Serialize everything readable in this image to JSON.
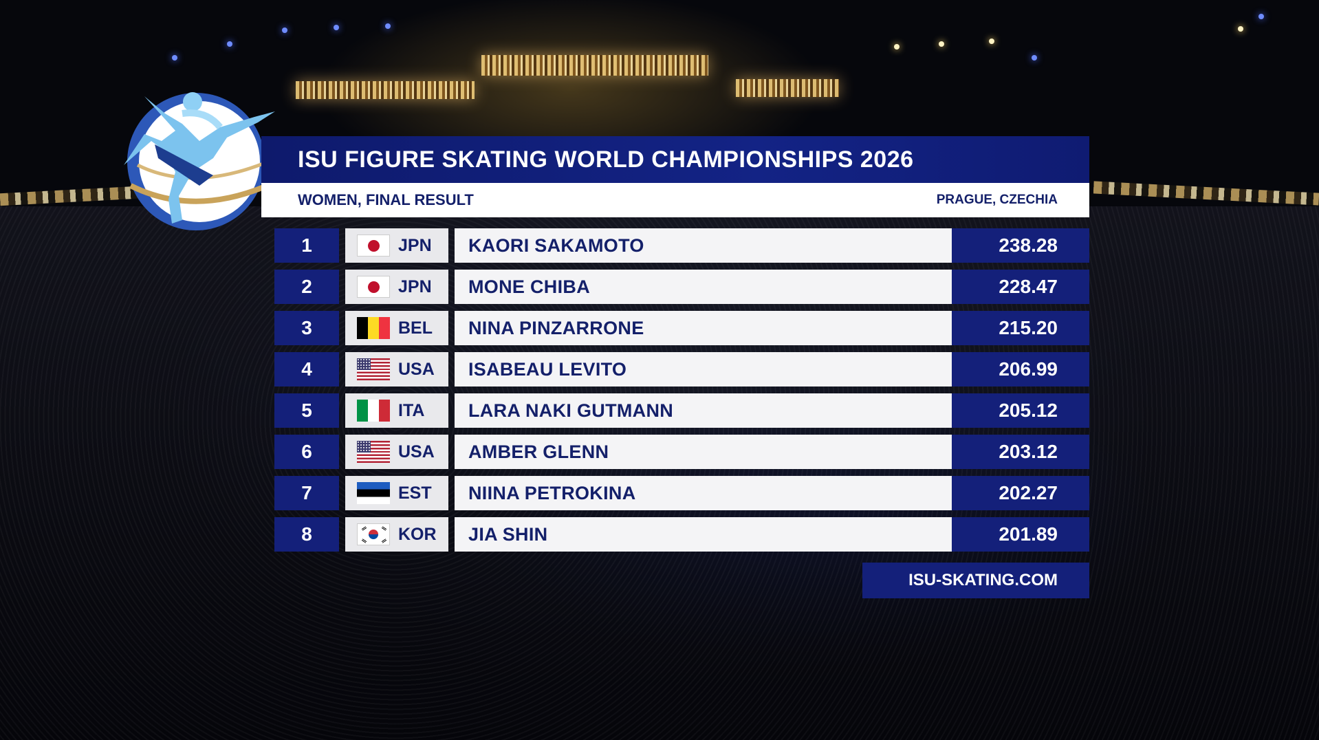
{
  "header": {
    "title": "ISU FIGURE SKATING WORLD CHAMPIONSHIPS 2026",
    "event": "WOMEN, FINAL RESULT",
    "location": "PRAGUE, CZECHIA"
  },
  "results": [
    {
      "rank": "1",
      "flag": "jpn",
      "nation": "JPN",
      "name": "KAORI SAKAMOTO",
      "score": "238.28"
    },
    {
      "rank": "2",
      "flag": "jpn",
      "nation": "JPN",
      "name": "MONE CHIBA",
      "score": "228.47"
    },
    {
      "rank": "3",
      "flag": "bel",
      "nation": "BEL",
      "name": "NINA PINZARRONE",
      "score": "215.20"
    },
    {
      "rank": "4",
      "flag": "usa",
      "nation": "USA",
      "name": "ISABEAU LEVITO",
      "score": "206.99"
    },
    {
      "rank": "5",
      "flag": "ita",
      "nation": "ITA",
      "name": "LARA NAKI GUTMANN",
      "score": "205.12"
    },
    {
      "rank": "6",
      "flag": "usa",
      "nation": "USA",
      "name": "AMBER GLENN",
      "score": "203.12"
    },
    {
      "rank": "7",
      "flag": "est",
      "nation": "EST",
      "name": "NIINA PETROKINA",
      "score": "202.27"
    },
    {
      "rank": "8",
      "flag": "kor",
      "nation": "KOR",
      "name": "JIA SHIN",
      "score": "201.89"
    }
  ],
  "footer": {
    "website": "ISU-SKATING.COM"
  },
  "logo": {
    "icon": "figure-skater-logo-icon"
  },
  "colors": {
    "navy": "#14207a",
    "title_bar": "#132385",
    "row_light": "#f4f4f6",
    "nation_cell": "#e9e9ec"
  }
}
